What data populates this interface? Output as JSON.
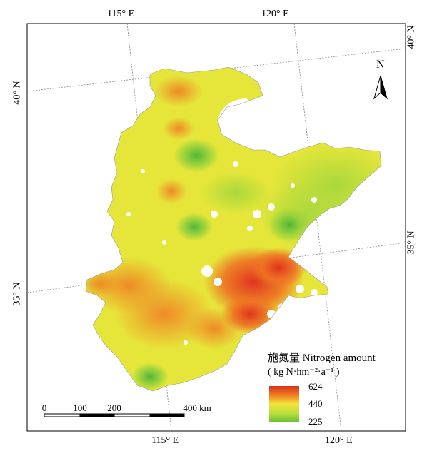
{
  "coordinate_labels": {
    "top": [
      "115° E",
      "120° E"
    ],
    "bottom": [
      "115° E",
      "120° E"
    ],
    "left": [
      "40° N",
      "35° N"
    ],
    "right": [
      "40° N",
      "35° N"
    ]
  },
  "north_arrow": {
    "label": "N"
  },
  "legend": {
    "title_line1": "施氮量 Nitrogen amount",
    "title_line2": "( kg N·hm⁻²·a⁻¹ )",
    "max": "624",
    "mid": "440",
    "min": "225",
    "colors": {
      "high": "#d7301f",
      "upper": "#f07b22",
      "mid": "#f2e33a",
      "lower": "#bfe03b",
      "low": "#6cc23a"
    }
  },
  "scale_bar": {
    "ticks": [
      "0",
      "100",
      "200",
      "400 km"
    ]
  }
}
